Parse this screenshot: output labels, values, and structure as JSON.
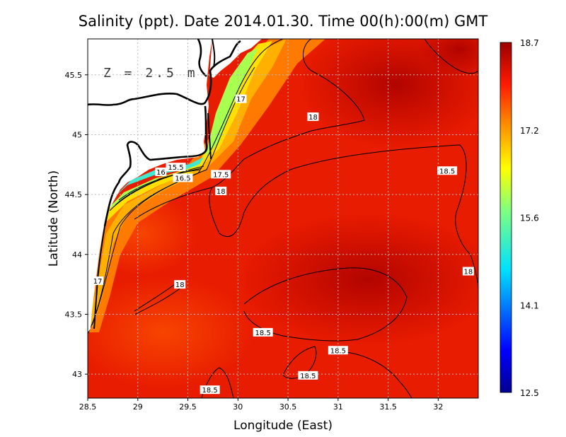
{
  "chart_data": {
    "type": "heatmap",
    "title": "Salinity (ppt). Date 2014.01.30. Time 00(h):00(m) GMT",
    "xlabel": "Longitude (East)",
    "ylabel": "Latitude (North)",
    "depth_label": "Z = 2.5 m",
    "xlim": [
      28.5,
      32.4
    ],
    "ylim": [
      42.8,
      45.8
    ],
    "x_ticks": [
      28.5,
      29,
      29.5,
      30,
      30.5,
      31,
      31.5,
      32
    ],
    "y_ticks": [
      43,
      43.5,
      44,
      44.5,
      45,
      45.5
    ],
    "grid": true,
    "grid_style": "dotted",
    "colorbar": {
      "min": 12.5,
      "max": 18.7,
      "ticks": [
        "18.7",
        "17.2",
        "15.6",
        "14.1",
        "12.5"
      ],
      "placement": "right"
    },
    "colors": {
      "high": "#b20000",
      "mid_high": "#ff3300",
      "mid": "#ffcc00",
      "mid_low": "#00d0ff",
      "low": "#000099",
      "land": "#ffffff",
      "coast": "#000000"
    },
    "contour_labels": [
      {
        "text": "17",
        "lon": 30.03,
        "lat": 45.3
      },
      {
        "text": "18",
        "lon": 30.75,
        "lat": 45.15
      },
      {
        "text": "15.5",
        "lon": 29.38,
        "lat": 44.73
      },
      {
        "text": "16",
        "lon": 29.23,
        "lat": 44.69
      },
      {
        "text": "16.5",
        "lon": 29.45,
        "lat": 44.64
      },
      {
        "text": "17.5",
        "lon": 29.83,
        "lat": 44.67
      },
      {
        "text": "18",
        "lon": 29.83,
        "lat": 44.53
      },
      {
        "text": "18.5",
        "lon": 32.09,
        "lat": 44.7
      },
      {
        "text": "17",
        "lon": 28.6,
        "lat": 43.78
      },
      {
        "text": "18",
        "lon": 29.42,
        "lat": 43.75
      },
      {
        "text": "18",
        "lon": 32.3,
        "lat": 43.86
      },
      {
        "text": "18.5",
        "lon": 30.25,
        "lat": 43.35
      },
      {
        "text": "18.5",
        "lon": 31.0,
        "lat": 43.2
      },
      {
        "text": "18.5",
        "lon": 30.7,
        "lat": 42.99
      },
      {
        "text": "18.5",
        "lon": 29.72,
        "lat": 42.87
      }
    ]
  }
}
